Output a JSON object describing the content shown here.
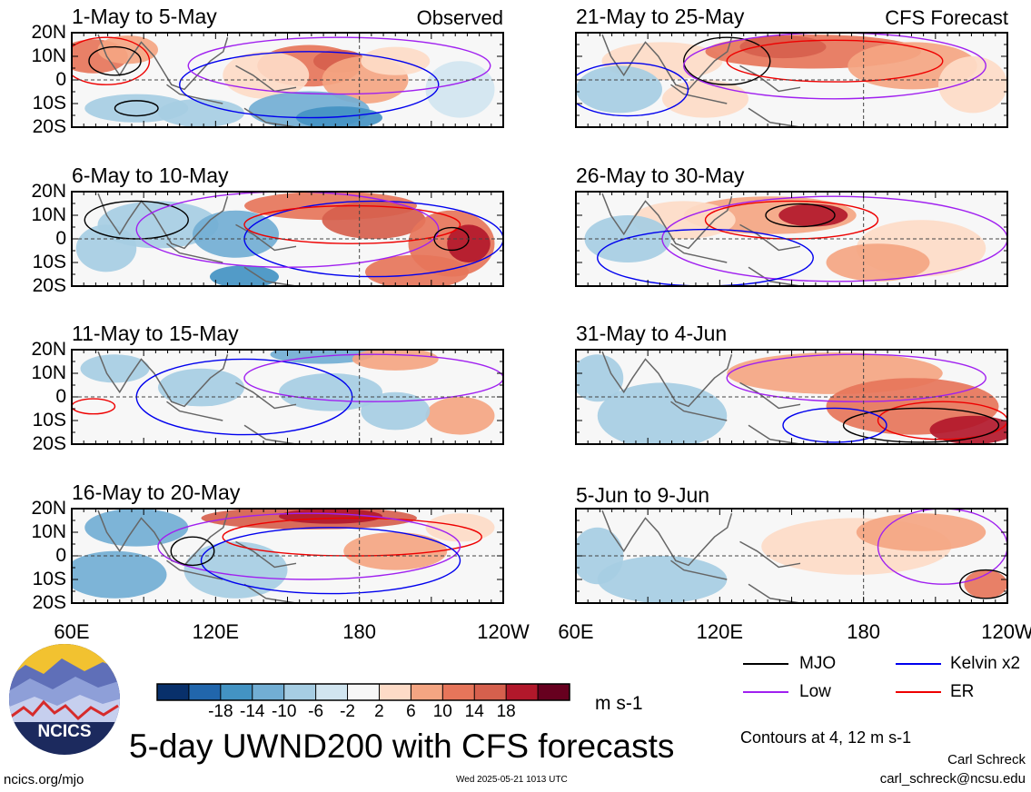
{
  "panels": [
    {
      "title": "1-May to 5-May",
      "label": "Observed"
    },
    {
      "title": "21-May to 25-May",
      "label": "CFS Forecast"
    },
    {
      "title": "6-May to 10-May",
      "label": ""
    },
    {
      "title": "26-May to 30-May",
      "label": ""
    },
    {
      "title": "11-May to 15-May",
      "label": ""
    },
    {
      "title": "31-May to 4-Jun",
      "label": ""
    },
    {
      "title": "16-May to 20-May",
      "label": ""
    },
    {
      "title": "5-Jun to 9-Jun",
      "label": ""
    }
  ],
  "y_ticks": [
    "20N",
    "10N",
    "0",
    "10S",
    "20S"
  ],
  "x_ticks": [
    "60E",
    "120E",
    "180",
    "120W"
  ],
  "colorbar": {
    "labels": [
      "-18",
      "-14",
      "-10",
      "-6",
      "-2",
      "2",
      "6",
      "10",
      "14",
      "18"
    ],
    "colors": [
      "#08306b",
      "#2166ac",
      "#4393c3",
      "#72aed4",
      "#a6cde3",
      "#d1e5f0",
      "#f7f7f7",
      "#fddbc7",
      "#f4a582",
      "#e6755a",
      "#d6604d",
      "#b2182b",
      "#67001f"
    ],
    "unit": "m s-1"
  },
  "legend": [
    {
      "label": "MJO",
      "color": "#000000"
    },
    {
      "label": "Kelvin x2",
      "color": "#0000ee"
    },
    {
      "label": "Low",
      "color": "#a020f0"
    },
    {
      "label": "ER",
      "color": "#ee0000"
    }
  ],
  "contour_note": "Contours at 4, 12 m s-1",
  "main_title": "5-day UWND200 with CFS forecasts",
  "credit": {
    "name": "Carl Schreck",
    "email": "carl_schreck@ncsu.edu"
  },
  "site_url": "ncics.org/mjo",
  "timestamp": "Wed 2025-05-21 1013 UTC",
  "logo_text": "NCICS"
}
